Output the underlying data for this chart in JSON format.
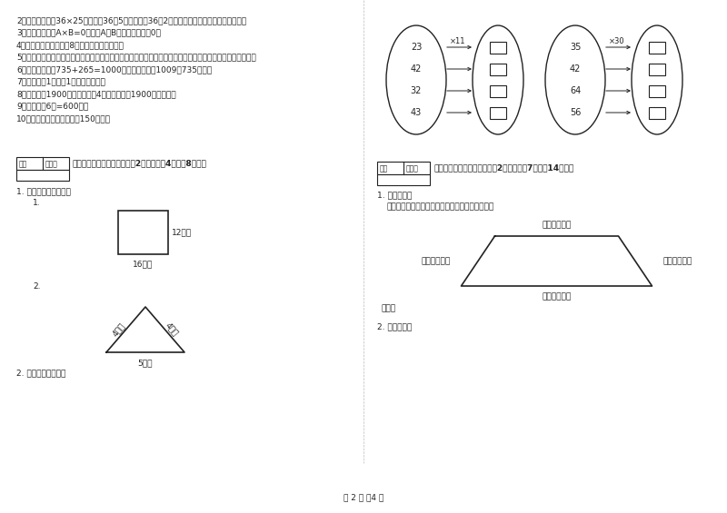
{
  "bg_color": "#ffffff",
  "text_color": "#222222",
  "page_width": 8.0,
  "page_height": 5.65,
  "left_items": [
    "2．（　　）计算36×25时，先把36和5相乘，再把36和2相乘，最后把两次乘得的结果相加。",
    "3．（　　）如果A×B=0，那么A和B中至少有一个是0。",
    "4．（　　）一个两位敩8，积一定也是两为数。",
    "5．（　　）用同一条铁丝先围成一个最大的正方形，再围成一个最大的长方形，长方形和正方形的周长相等。",
    "6．（　　）根据735+265=1000，可以直接写出1009－735的差。",
    "7．（　　）1吟棉与1吟铅花一样重。",
    "8．（　　）1900年的年份数是4的倍数，所以1900年是闰年。",
    "9．（　　）6分=600秒。",
    "10．（　）一本故事书的重150千克。"
  ],
  "section4_title": "四、看清题目，细心计算（共2小题，每题4分，共8分）。",
  "section4_sub1": "1. 求下面图形的周长。",
  "section4_sub1a": "1.",
  "section4_sub1b": "2.",
  "rect_label_right": "12厘米",
  "rect_label_bottom": "16厘米",
  "tri_label_left": "4分米",
  "tri_label_right": "4分米",
  "tri_label_bottom": "5分米",
  "section4_sub2": "2. 算一算，填一填。",
  "oval_left_nums": [
    "23",
    "42",
    "32",
    "43"
  ],
  "oval_right1_label": "×11",
  "oval_right2_label": "×30",
  "oval_right_nums1": [
    "35",
    "42",
    "64",
    "56"
  ],
  "section5_title": "五、认真思考，综合能力（共2小题，每题7分，共14分）。",
  "section5_sub1": "1. 动手操作。",
  "section5_sub1_desc": "量出每条边的长度，以毫米为单位，并计算周长。",
  "top_label": "（　　）毫米",
  "left_label": "（　　）毫米",
  "right_label": "（　　）毫米",
  "bottom_label": "（　　）毫米",
  "perimeter_label": "周长：",
  "section5_sub2": "2. 看图填空：",
  "footer": "第 2 页 兲4 页"
}
